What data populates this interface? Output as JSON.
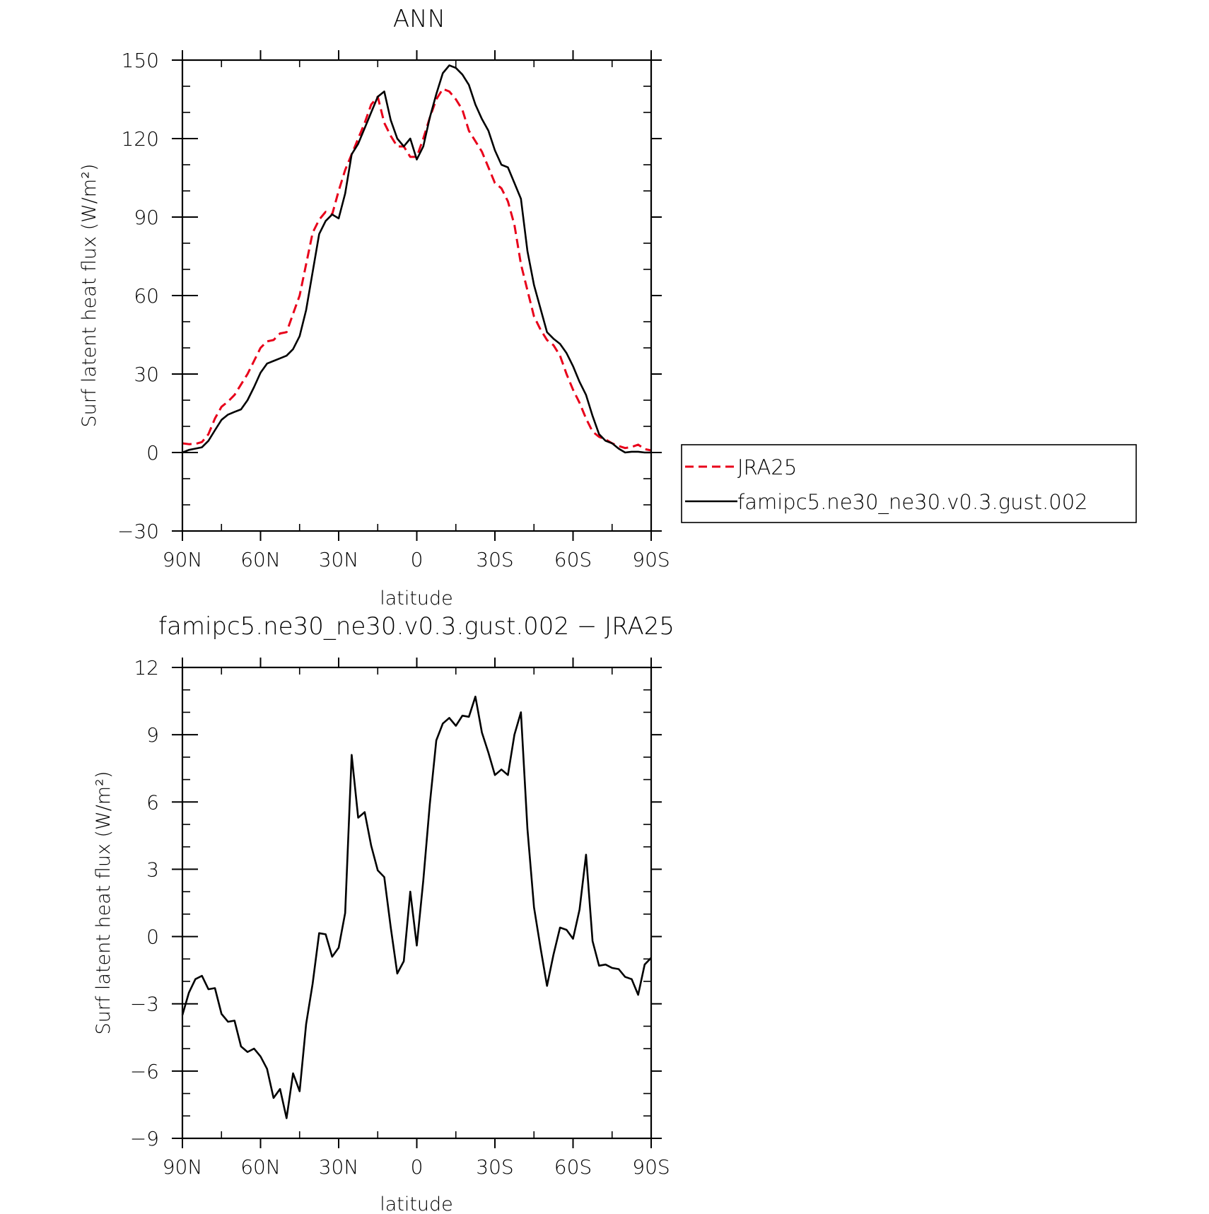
{
  "chart_data": [
    {
      "type": "line",
      "title": "ANN",
      "xlabel": "latitude",
      "ylabel": "Surf latent heat flux (W/m²)",
      "xlim": [
        90,
        -90
      ],
      "ylim": [
        -30,
        150
      ],
      "x_ticks": [
        90,
        60,
        30,
        0,
        -30,
        -60,
        -90
      ],
      "x_tick_labels": [
        "90N",
        "60N",
        "30N",
        "0",
        "30S",
        "60S",
        "90S"
      ],
      "y_ticks": [
        -30,
        0,
        30,
        60,
        90,
        120,
        150
      ],
      "y_tick_labels": [
        "−30",
        "0",
        "30",
        "60",
        "90",
        "120",
        "150"
      ],
      "legend_position": "right",
      "series": [
        {
          "name": "JRA25",
          "color": "#e8001a",
          "dash": "dashed",
          "x": [
            90,
            87.5,
            85,
            82.5,
            80,
            77.5,
            75,
            72.5,
            70,
            67.5,
            65,
            62.5,
            60,
            57.5,
            55,
            52.5,
            50,
            47.5,
            45,
            42.5,
            40,
            37.5,
            35,
            32.5,
            30,
            27.5,
            25,
            22.5,
            20,
            17.5,
            15,
            12.5,
            10,
            7.5,
            5,
            2.5,
            0,
            -2.5,
            -5,
            -7.5,
            -10,
            -12.5,
            -15,
            -17.5,
            -20,
            -22.5,
            -25,
            -27.5,
            -30,
            -32.5,
            -35,
            -37.5,
            -40,
            -42.5,
            -45,
            -47.5,
            -50,
            -52.5,
            -55,
            -57.5,
            -60,
            -62.5,
            -65,
            -67.5,
            -70,
            -72.5,
            -75,
            -77.5,
            -80,
            -82.5,
            -85,
            -87.5,
            -90
          ],
          "values": [
            3.5,
            3.2,
            3.3,
            4,
            7,
            13,
            17.5,
            19.5,
            22,
            26,
            30,
            35,
            40,
            42.5,
            43,
            45.5,
            46,
            53,
            60,
            72,
            84,
            89,
            92,
            91,
            100,
            108,
            114,
            120,
            126,
            133,
            136,
            126,
            121,
            117,
            117,
            113,
            113,
            120,
            128,
            135,
            139,
            138,
            135,
            131,
            123,
            119,
            115,
            109,
            103,
            101,
            96,
            87,
            72,
            62,
            52,
            47,
            43,
            41,
            37,
            30,
            24,
            19,
            13,
            8,
            6,
            5,
            3.5,
            2.5,
            1.7,
            2.1,
            3,
            1.3,
            0.8
          ]
        },
        {
          "name": "famipc5.ne30_ne30.v0.3.gust.002",
          "color": "#000000",
          "dash": "solid",
          "x": [
            90,
            87.5,
            85,
            82.5,
            80,
            77.5,
            75,
            72.5,
            70,
            67.5,
            65,
            62.5,
            60,
            57.5,
            55,
            52.5,
            50,
            47.5,
            45,
            42.5,
            40,
            37.5,
            35,
            32.5,
            30,
            27.5,
            25,
            22.5,
            20,
            17.5,
            15,
            12.5,
            10,
            7.5,
            5,
            2.5,
            0,
            -2.5,
            -5,
            -7.5,
            -10,
            -12.5,
            -15,
            -17.5,
            -20,
            -22.5,
            -25,
            -27.5,
            -30,
            -32.5,
            -35,
            -37.5,
            -40,
            -42.5,
            -45,
            -47.5,
            -50,
            -52.5,
            -55,
            -57.5,
            -60,
            -62.5,
            -65,
            -67.5,
            -70,
            -72.5,
            -75,
            -77.5,
            -80,
            -82.5,
            -85,
            -87.5,
            -90
          ],
          "values": [
            0,
            1,
            1.5,
            2,
            4.5,
            8.5,
            12.5,
            14.5,
            15.5,
            16.5,
            20,
            25,
            30.5,
            34,
            35,
            36,
            37,
            39.5,
            44.5,
            54.5,
            69,
            83.5,
            88.5,
            91,
            89.5,
            99,
            114,
            118,
            124,
            130,
            136,
            138,
            127,
            120,
            117,
            120,
            112,
            117,
            128,
            137,
            145,
            148,
            147,
            144.5,
            140.5,
            133,
            127.5,
            123,
            115.5,
            110,
            109,
            103,
            97,
            77,
            64,
            55,
            46,
            43.5,
            41.5,
            38,
            33,
            27,
            22,
            14,
            7,
            4.5,
            3.5,
            1.5,
            0,
            0.3,
            0.3,
            0,
            0
          ]
        }
      ]
    },
    {
      "type": "line",
      "title": "famipc5.ne30_ne30.v0.3.gust.002 − JRA25",
      "xlabel": "latitude",
      "ylabel": "Surf latent heat flux (W/m²)",
      "xlim": [
        90,
        -90
      ],
      "ylim": [
        -9,
        12
      ],
      "x_ticks": [
        90,
        60,
        30,
        0,
        -30,
        -60,
        -90
      ],
      "x_tick_labels": [
        "90N",
        "60N",
        "30N",
        "0",
        "30S",
        "60S",
        "90S"
      ],
      "y_ticks": [
        -9,
        -6,
        -3,
        0,
        3,
        6,
        9,
        12
      ],
      "y_tick_labels": [
        "−9",
        "−6",
        "−3",
        "0",
        "3",
        "6",
        "9",
        "12"
      ],
      "series": [
        {
          "color": "#000000",
          "dash": "solid",
          "x": [
            90,
            87.5,
            85,
            82.5,
            80,
            77.5,
            75,
            72.5,
            70,
            67.5,
            65,
            62.5,
            60,
            57.5,
            55,
            52.5,
            50,
            47.5,
            45,
            42.5,
            40,
            37.5,
            35,
            32.5,
            30,
            27.5,
            25,
            22.5,
            20,
            17.5,
            15,
            12.5,
            10,
            7.5,
            5,
            2.5,
            0,
            -2.5,
            -5,
            -7.5,
            -10,
            -12.5,
            -15,
            -17.5,
            -20,
            -22.5,
            -25,
            -27.5,
            -30,
            -32.5,
            -35,
            -37.5,
            -40,
            -42.5,
            -45,
            -47.5,
            -50,
            -52.5,
            -55,
            -57.5,
            -60,
            -62.5,
            -65,
            -67.5,
            -70,
            -72.5,
            -75,
            -77.5,
            -80,
            -82.5,
            -85,
            -87.5,
            -90
          ],
          "values": [
            -3.5,
            -2.5,
            -1.9,
            -1.75,
            -2.35,
            -2.3,
            -3.45,
            -3.8,
            -3.75,
            -4.9,
            -5.15,
            -5,
            -5.35,
            -5.9,
            -7.2,
            -6.8,
            -8.1,
            -6.1,
            -6.9,
            -3.9,
            -2.1,
            0.15,
            0.1,
            -0.9,
            -0.5,
            1.05,
            8.1,
            5.3,
            5.55,
            4.05,
            2.95,
            2.65,
            0.4,
            -1.65,
            -1.1,
            2.0,
            -0.4,
            2.5,
            5.9,
            8.75,
            9.5,
            9.75,
            9.4,
            9.85,
            9.8,
            10.7,
            9.1,
            8.2,
            7.2,
            7.45,
            7.2,
            9.0,
            10.0,
            4.8,
            1.3,
            -0.5,
            -2.2,
            -0.8,
            0.4,
            0.3,
            -0.1,
            1.2,
            3.65,
            -0.2,
            -1.3,
            -1.25,
            -1.4,
            -1.45,
            -1.8,
            -1.9,
            -2.6,
            -1.25,
            -0.95
          ]
        }
      ]
    }
  ]
}
